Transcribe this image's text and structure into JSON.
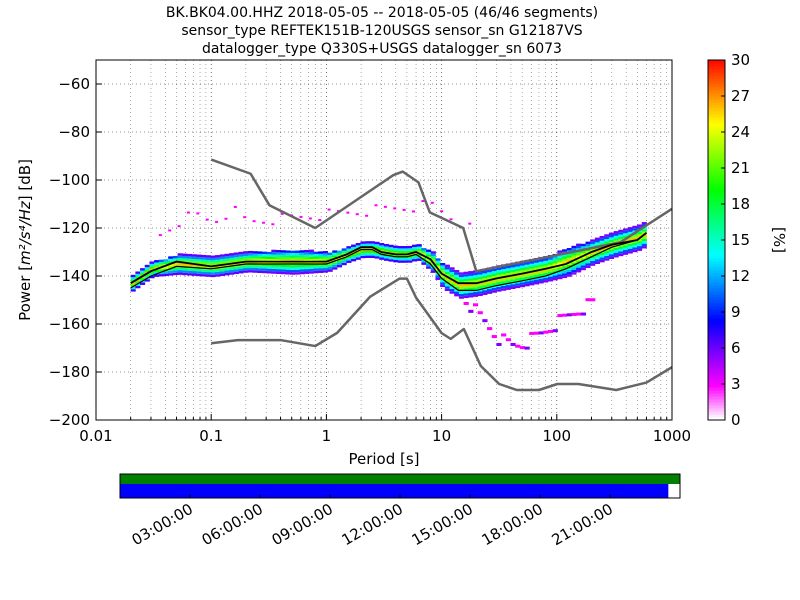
{
  "header": {
    "title_lines": [
      "BK.BK04.00.HHZ   2018-05-05 -- 2018-05-05  (46/46 segments)",
      "sensor_type REFTEK151B-120USGS sensor_sn G12187VS",
      "datalogger_type Q330S+USGS datalogger_sn 6073"
    ]
  },
  "chart_data": {
    "type": "heatmap",
    "xlabel": "Period [s]",
    "ylabel_prefix": "Power [",
    "ylabel_units": "m²/s⁴/Hz",
    "ylabel_suffix": "] [dB]",
    "xscale": "log",
    "xlim": [
      0.01,
      1000
    ],
    "ylim": [
      -200,
      -50
    ],
    "x_ticks": [
      {
        "value": 0.01,
        "label": "0.01"
      },
      {
        "value": 0.1,
        "label": "0.1"
      },
      {
        "value": 1,
        "label": "1"
      },
      {
        "value": 10,
        "label": "10"
      },
      {
        "value": 100,
        "label": "100"
      },
      {
        "value": 1000,
        "label": "1000"
      }
    ],
    "y_ticks": [
      {
        "value": -60,
        "label": "−60"
      },
      {
        "value": -80,
        "label": "−80"
      },
      {
        "value": -100,
        "label": "−100"
      },
      {
        "value": -120,
        "label": "−120"
      },
      {
        "value": -140,
        "label": "−140"
      },
      {
        "value": -160,
        "label": "−160"
      },
      {
        "value": -180,
        "label": "−180"
      },
      {
        "value": -200,
        "label": "−200"
      }
    ],
    "grid": "dotted",
    "colorbar": {
      "label": "[%]",
      "min": 0,
      "max": 30,
      "ticks": [
        {
          "value": 0,
          "label": "0"
        },
        {
          "value": 3,
          "label": "3"
        },
        {
          "value": 6,
          "label": "6"
        },
        {
          "value": 9,
          "label": "9"
        },
        {
          "value": 12,
          "label": "12"
        },
        {
          "value": 15,
          "label": "15"
        },
        {
          "value": 18,
          "label": "18"
        },
        {
          "value": 21,
          "label": "21"
        },
        {
          "value": 24,
          "label": "24"
        },
        {
          "value": 27,
          "label": "27"
        },
        {
          "value": 30,
          "label": "30"
        }
      ],
      "colors": [
        "#ffffff",
        "#ff00ff",
        "#8000ff",
        "#0000ff",
        "#0080ff",
        "#00ffff",
        "#00ff80",
        "#00ff00",
        "#80ff00",
        "#ffff00",
        "#ff8000",
        "#ff0000"
      ]
    },
    "noise_model_color": "#666666",
    "nhnm": {
      "x": [
        0.1,
        0.22,
        0.32,
        0.8,
        3.8,
        4.6,
        6.3,
        7.9,
        15.4,
        20,
        354.8,
        1000
      ],
      "y": [
        -91.5,
        -97.4,
        -110.5,
        -120,
        -98,
        -96.5,
        -101,
        -113.5,
        -120,
        -138,
        -126,
        -112
      ]
    },
    "nlnm": {
      "x": [
        0.1,
        0.17,
        0.4,
        0.8,
        1.24,
        2.4,
        4.3,
        5,
        6,
        10,
        12,
        15.6,
        21.9,
        31.6,
        45,
        70,
        101,
        154,
        328,
        600,
        1000
      ],
      "y": [
        -168,
        -166.7,
        -166.7,
        -169.2,
        -163.7,
        -148.6,
        -141.1,
        -141.1,
        -149,
        -163.8,
        -166.2,
        -162.1,
        -177.5,
        -185,
        -187.5,
        -187.5,
        -185,
        -185,
        -187.5,
        -184.4,
        -178
      ]
    },
    "mode_line": {
      "x": [
        0.02,
        0.03,
        0.05,
        0.1,
        0.2,
        0.5,
        1,
        1.5,
        2,
        2.5,
        3,
        4,
        5,
        6,
        8,
        10,
        14,
        20,
        30,
        50,
        80,
        120,
        200,
        300,
        500,
        600
      ],
      "y": [
        -143,
        -138,
        -134,
        -136,
        -134,
        -134,
        -134,
        -131,
        -128,
        -128,
        -130,
        -131,
        -131,
        -130,
        -133,
        -139,
        -143,
        -143,
        -141,
        -139,
        -137,
        -135,
        -130,
        -127,
        -125,
        -122
      ]
    },
    "mean_line": {
      "x": [
        0.02,
        0.03,
        0.05,
        0.1,
        0.2,
        0.5,
        1,
        1.5,
        2,
        2.5,
        3,
        4,
        5,
        6,
        8,
        10,
        14,
        20,
        30,
        50,
        80,
        120,
        200,
        300,
        500,
        600
      ],
      "y": [
        -145,
        -140,
        -136,
        -137,
        -135,
        -135,
        -135,
        -132,
        -129,
        -129,
        -131,
        -132,
        -132,
        -131,
        -135,
        -141,
        -146,
        -146,
        -144,
        -142,
        -140,
        -137,
        -132,
        -128,
        -125,
        -122
      ]
    },
    "density_band": {
      "x": [
        0.02,
        0.03,
        0.05,
        0.1,
        0.2,
        0.5,
        1,
        1.5,
        2,
        2.5,
        3,
        4,
        5,
        6,
        8,
        10,
        14,
        20,
        30,
        50,
        80,
        120,
        200,
        300,
        500,
        600
      ],
      "center": [
        -143,
        -137,
        -135,
        -136,
        -134,
        -134,
        -134,
        -131,
        -129,
        -129,
        -130,
        -131,
        -131,
        -130,
        -134,
        -140,
        -144,
        -143,
        -141,
        -139,
        -137,
        -134,
        -130,
        -127,
        -124,
        -122
      ],
      "halfwidth": [
        3,
        3,
        4,
        4,
        4,
        5,
        4,
        3,
        3,
        3,
        3,
        3,
        3,
        3,
        4,
        5,
        5,
        5,
        5,
        5,
        5,
        6,
        5,
        5,
        5,
        5
      ]
    },
    "outliers": {
      "upper_x": [
        0.03,
        0.05,
        0.07,
        0.1,
        0.15,
        0.2,
        8,
        10,
        15,
        20
      ],
      "upper_y": [
        -125,
        -117,
        -114,
        -117,
        -112,
        -117,
        -110,
        -113,
        -118,
        -122
      ],
      "lower_x": [
        15,
        20,
        30,
        40,
        50,
        70,
        100,
        150,
        200
      ],
      "lower_y": [
        -148,
        -155,
        -165,
        -168,
        -167,
        -163,
        -158,
        -153,
        -150
      ]
    },
    "timeline": {
      "labels": [
        "03:00:00",
        "06:00:00",
        "09:00:00",
        "12:00:00",
        "15:00:00",
        "18:00:00",
        "21:00:00"
      ],
      "hours": [
        3,
        6,
        9,
        12,
        15,
        18,
        21
      ],
      "span_hours": 24,
      "data_bar_color": "#008000",
      "segments_bar_color": "#0000ff",
      "segments_end_hour": 23.5
    }
  }
}
